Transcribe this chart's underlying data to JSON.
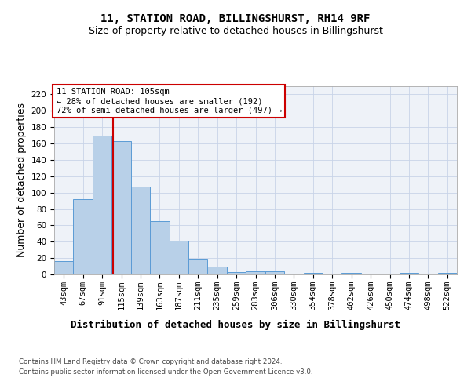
{
  "title": "11, STATION ROAD, BILLINGSHURST, RH14 9RF",
  "subtitle": "Size of property relative to detached houses in Billingshurst",
  "xlabel": "Distribution of detached houses by size in Billingshurst",
  "ylabel": "Number of detached properties",
  "categories": [
    "43sqm",
    "67sqm",
    "91sqm",
    "115sqm",
    "139sqm",
    "163sqm",
    "187sqm",
    "211sqm",
    "235sqm",
    "259sqm",
    "283sqm",
    "306sqm",
    "330sqm",
    "354sqm",
    "378sqm",
    "402sqm",
    "426sqm",
    "450sqm",
    "474sqm",
    "498sqm",
    "522sqm"
  ],
  "values": [
    16,
    92,
    170,
    163,
    107,
    65,
    41,
    19,
    10,
    3,
    4,
    4,
    0,
    2,
    0,
    2,
    0,
    0,
    2,
    0,
    2
  ],
  "bar_color": "#b8d0e8",
  "bar_edge_color": "#5b9bd5",
  "ylim": [
    0,
    230
  ],
  "yticks": [
    0,
    20,
    40,
    60,
    80,
    100,
    120,
    140,
    160,
    180,
    200,
    220
  ],
  "vline_x": 2.58,
  "vline_color": "#cc0000",
  "annotation_text": "11 STATION ROAD: 105sqm\n← 28% of detached houses are smaller (192)\n72% of semi-detached houses are larger (497) →",
  "annotation_box_color": "#ffffff",
  "annotation_box_edge": "#cc0000",
  "footer1": "Contains HM Land Registry data © Crown copyright and database right 2024.",
  "footer2": "Contains public sector information licensed under the Open Government Licence v3.0.",
  "plot_bg_color": "#eef2f8",
  "title_fontsize": 10,
  "subtitle_fontsize": 9,
  "tick_fontsize": 7.5,
  "label_fontsize": 9,
  "ann_fontsize": 7.5
}
